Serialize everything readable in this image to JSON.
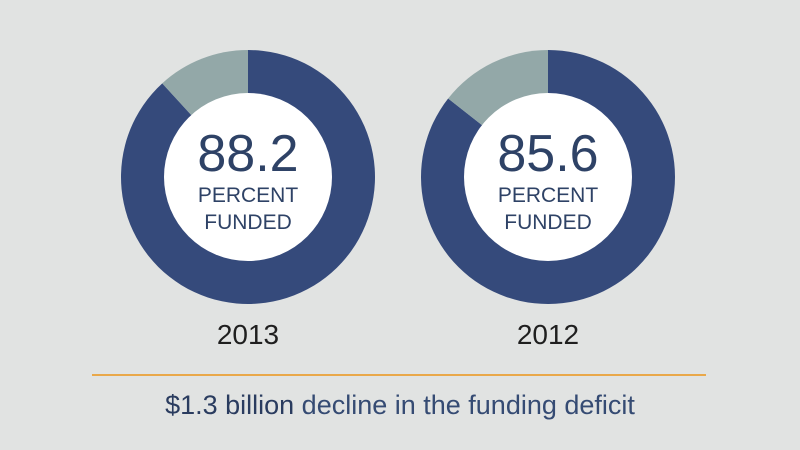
{
  "colors": {
    "funded": "#354a7b",
    "unfunded": "#93a8a8",
    "center": "#ffffff",
    "divider": "#e9a84a"
  },
  "chart_data": [
    {
      "type": "pie",
      "year_label": "2013",
      "center_value": "88.2",
      "center_line1": "PERCENT",
      "center_line2": "FUNDED",
      "slices": [
        {
          "value": 88.2,
          "color": "#354a7b"
        },
        {
          "value": 11.8,
          "color": "#93a8a8"
        }
      ]
    },
    {
      "type": "pie",
      "year_label": "2012",
      "center_value": "85.6",
      "center_line1": "PERCENT",
      "center_line2": "FUNDED",
      "slices": [
        {
          "value": 85.6,
          "color": "#354a7b"
        },
        {
          "value": 14.4,
          "color": "#93a8a8"
        }
      ]
    }
  ],
  "caption": {
    "amount": "$1.3 billion",
    "rest": " decline in the funding deficit"
  }
}
